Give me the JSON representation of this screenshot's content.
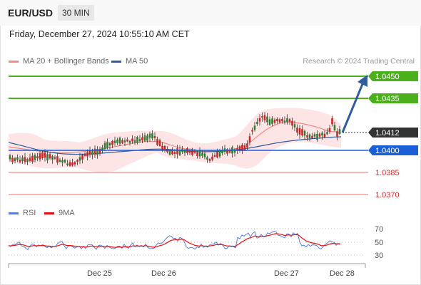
{
  "header": {
    "pair": "EUR/USD",
    "timeframe": "30 MIN"
  },
  "datetime": "Friday, December 27, 2024 10:55:10 AM CET",
  "legend": {
    "ma20": {
      "label": "MA 20 + Bollinger Bands",
      "color": "#f28b82"
    },
    "ma50": {
      "label": "MA 50",
      "color": "#2f5d9c"
    }
  },
  "credit": "Research © 2024 Trading Central",
  "levels": [
    {
      "value": "1.0450",
      "type": "target",
      "color": "#4caf1c"
    },
    {
      "value": "1.0435",
      "type": "target",
      "color": "#4caf1c"
    },
    {
      "value": "1.0412",
      "type": "current",
      "color": "#333333"
    },
    {
      "value": "1.0400",
      "type": "pivot",
      "color": "#1a5fd6"
    },
    {
      "value": "1.0385",
      "type": "support",
      "color": "#d32f2f"
    },
    {
      "value": "1.0370",
      "type": "support",
      "color": "#d32f2f"
    }
  ],
  "rsi": {
    "legend_rsi": "RSI",
    "legend_ma": "9MA",
    "rsi_color": "#5b7fd6",
    "ma_color": "#e01010",
    "levels": [
      "70",
      "50",
      "30"
    ]
  },
  "xaxis": {
    "labels": [
      "Dec 25",
      "Dec 26",
      "Dec 27",
      "Dec 28"
    ]
  }
}
